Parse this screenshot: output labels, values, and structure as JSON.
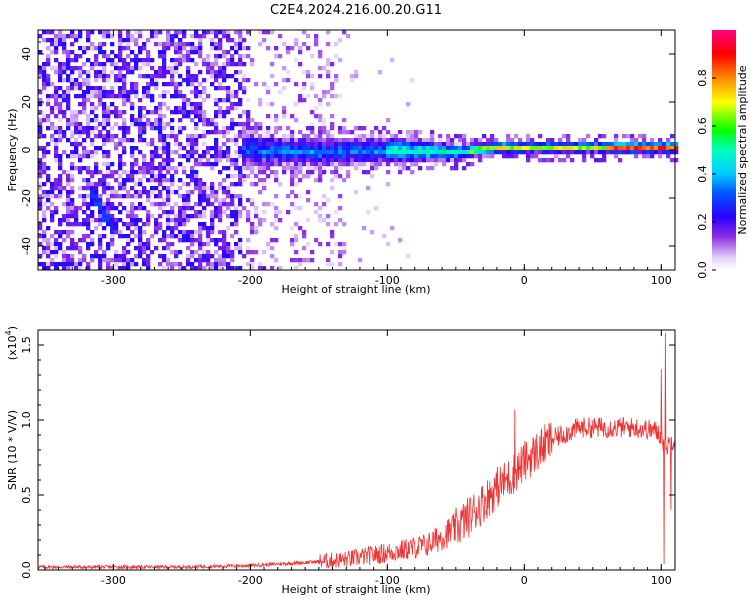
{
  "figure_title": "C2E4.2024.216.00.20.G11",
  "chart_data": [
    {
      "type": "heatmap",
      "title": "C2E4.2024.216.00.20.G11",
      "xlabel": "Height of straight line (km)",
      "ylabel": "Frequency (Hz)",
      "xlim": [
        -355,
        110
      ],
      "ylim": [
        -50,
        50
      ],
      "x_ticks": [
        -300,
        -200,
        -100,
        0,
        100
      ],
      "y_ticks": [
        -40,
        -20,
        0,
        20,
        40
      ],
      "x_tick_labels": [
        "-300",
        "-200",
        "-100",
        "0",
        "100"
      ],
      "y_tick_labels": [
        "-40",
        "-20",
        "0",
        "20",
        "40"
      ],
      "colorbar": {
        "label": "Normalized spectral amplitude",
        "range": [
          0.0,
          1.0
        ],
        "ticks": [
          0.0,
          0.2,
          0.4,
          0.6,
          0.8
        ],
        "tick_labels": [
          "0.0",
          "0.2",
          "0.4",
          "0.6",
          "0.8"
        ],
        "colors": [
          "#ffffff",
          "#e9dcfb",
          "#8a2be2",
          "#5a00ff",
          "#0000ff",
          "#00bfff",
          "#00ffd0",
          "#00ff00",
          "#ffff00",
          "#ff8000",
          "#ff0000",
          "#ff0080"
        ]
      },
      "features": {
        "noise_region_x": [
          -355,
          -130
        ],
        "signal_band_center_hz": [
          [
            -200,
            0
          ],
          [
            -150,
            -1
          ],
          [
            -100,
            0
          ],
          [
            -50,
            -1
          ],
          [
            -20,
            1
          ],
          [
            0,
            1
          ],
          [
            50,
            1
          ],
          [
            100,
            1
          ],
          [
            110,
            1
          ]
        ],
        "signal_band_halfwidth_hz": [
          [
            -200,
            8
          ],
          [
            -100,
            7
          ],
          [
            -60,
            5
          ],
          [
            -30,
            3
          ],
          [
            0,
            2.5
          ],
          [
            110,
            2.5
          ]
        ],
        "diagonal_streak": [
          [
            -318,
            -15
          ],
          [
            -300,
            -33
          ]
        ]
      }
    },
    {
      "type": "line",
      "xlabel": "Height of straight line (km)",
      "ylabel": "SNR (10 * V/V)",
      "y_multiplier_label": "(x10",
      "y_multiplier_exponent": "4",
      "xlim": [
        -355,
        110
      ],
      "ylim": [
        0,
        1.6
      ],
      "x_ticks": [
        -300,
        -200,
        -100,
        0,
        100
      ],
      "y_ticks": [
        0.0,
        0.5,
        1.0,
        1.5
      ],
      "x_tick_labels": [
        "-300",
        "-200",
        "-100",
        "0",
        "100"
      ],
      "y_tick_labels": [
        "0.0",
        "0.5",
        "1.0",
        "1.5"
      ],
      "series": [
        {
          "color": "#ee3333",
          "envelope_x": [
            -355,
            -250,
            -200,
            -160,
            -130,
            -110,
            -90,
            -70,
            -50,
            -40,
            -30,
            -20,
            -10,
            0,
            20,
            40,
            60,
            80,
            95,
            100,
            103,
            106,
            110
          ],
          "envelope_y": [
            0.02,
            0.02,
            0.03,
            0.05,
            0.07,
            0.1,
            0.13,
            0.17,
            0.28,
            0.36,
            0.45,
            0.55,
            0.62,
            0.72,
            0.87,
            0.95,
            0.95,
            0.95,
            0.93,
            0.9,
            0.8,
            0.85,
            0.88
          ],
          "spikes": [
            [
              -7,
              1.07
            ],
            [
              103,
              1.58
            ],
            [
              102,
              0.04
            ],
            [
              100,
              1.34
            ],
            [
              107,
              0.4
            ]
          ]
        }
      ]
    }
  ]
}
